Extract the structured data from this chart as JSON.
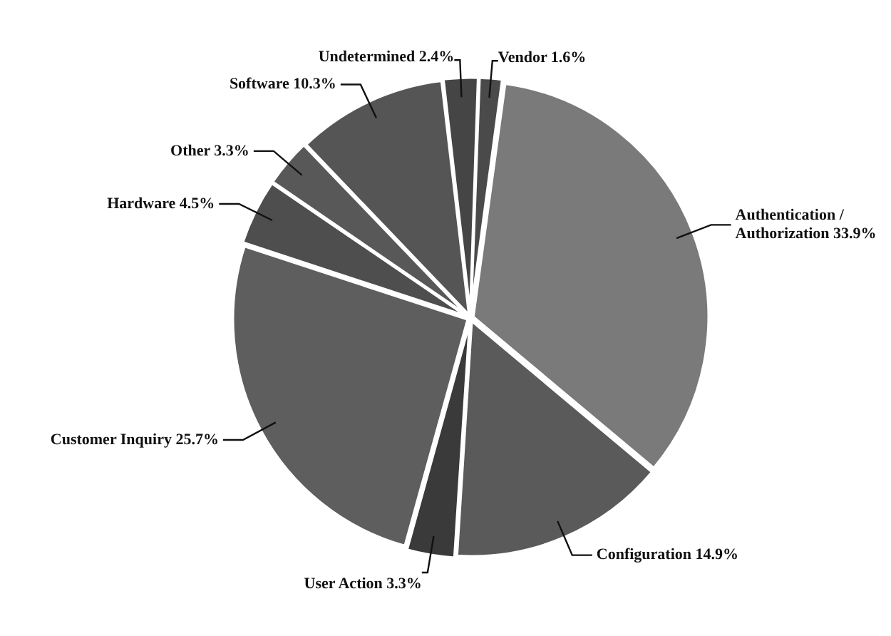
{
  "chart_data": {
    "type": "pie",
    "categories": [
      "Vendor",
      "Authentication / Authorization",
      "Configuration",
      "User Action",
      "Customer Inquiry",
      "Hardware",
      "Other",
      "Software",
      "Undetermined"
    ],
    "values": [
      1.6,
      33.9,
      14.9,
      3.3,
      25.7,
      4.5,
      3.3,
      10.3,
      2.4
    ],
    "value_labels": [
      "1.6%",
      "33.9%",
      "14.9%",
      "3.3%",
      "25.7%",
      "4.5%",
      "3.3%",
      "10.3%",
      "2.4%"
    ],
    "colors": [
      "#4a4a4a",
      "#7a7a7a",
      "#5a5a5a",
      "#3a3a3a",
      "#5e5e5e",
      "#4e4e4e",
      "#585858",
      "#555555",
      "#454545"
    ],
    "legend": false
  }
}
